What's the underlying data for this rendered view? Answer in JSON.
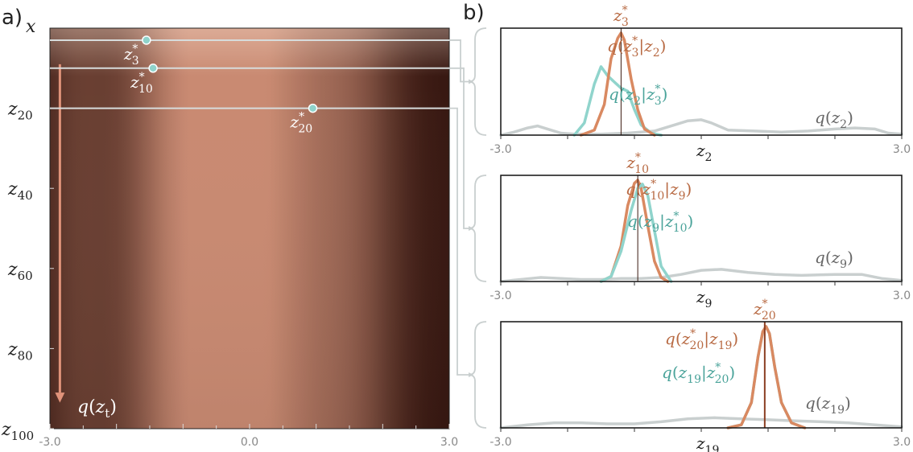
{
  "panels": {
    "a": {
      "letter": "a)",
      "y_axis_var": "x",
      "y_axis_labels": [
        {
          "var": "z",
          "sub": "20",
          "value": 20
        },
        {
          "var": "z",
          "sub": "40",
          "value": 40
        },
        {
          "var": "z",
          "sub": "60",
          "value": 60
        },
        {
          "var": "z",
          "sub": "80",
          "value": 80
        },
        {
          "var": "z",
          "sub": "100",
          "value": 100
        }
      ],
      "x_ticks": [
        "-3.0",
        "0.0",
        "3.0"
      ],
      "arrow_label": {
        "func": "q",
        "var": "z",
        "sub": "t"
      },
      "markers": [
        {
          "name": "marker-z3",
          "var": "z",
          "sub": "3",
          "sup": "*",
          "x": -1.55,
          "t": 3
        },
        {
          "name": "marker-z10",
          "var": "z",
          "sub": "10",
          "sup": "*",
          "x": -1.45,
          "t": 10
        },
        {
          "name": "marker-z20",
          "var": "z",
          "sub": "20",
          "sup": "*",
          "x": 0.95,
          "t": 20
        }
      ]
    },
    "b": {
      "letter": "b)",
      "x_ticks": [
        "-3.0",
        "3.0"
      ]
    }
  },
  "chart_data": [
    {
      "type": "heatmap",
      "panel": "a",
      "xlim": [
        -3.0,
        3.0
      ],
      "ylim": [
        0,
        100
      ],
      "x_tick_values": [
        -3.0,
        0.0,
        3.0
      ],
      "y_tick_values": [
        20,
        40,
        60,
        80,
        100
      ],
      "colormap": [
        "#2a0d08",
        "#c98a72"
      ],
      "density_modes": [
        {
          "center": -1.2,
          "width": 0.6,
          "weight": 0.55
        },
        {
          "center": 0.1,
          "width": 0.9,
          "weight": 1.0
        },
        {
          "center": 1.6,
          "width": 0.5,
          "weight": 0.35
        },
        {
          "center": -2.6,
          "width": 0.4,
          "weight": 0.3
        }
      ]
    },
    {
      "type": "line",
      "panel": "b-top",
      "title_var": {
        "var": "z",
        "sub": "3",
        "sup": "*"
      },
      "xlabel": {
        "var": "z",
        "sub": "2"
      },
      "xlim": [
        -3.0,
        3.0
      ],
      "star_x": -1.2,
      "series": [
        {
          "name": "q(z3*|z2)",
          "label_parts": {
            "func": "q",
            "cond_left": {
              "var": "z",
              "sub": "3",
              "sup": "*"
            },
            "cond_right": {
              "var": "z",
              "sub": "2"
            }
          },
          "color": "#d98961",
          "x": [
            -1.8,
            -1.6,
            -1.45,
            -1.35,
            -1.25,
            -1.2,
            -1.15,
            -1.05,
            -0.95,
            -0.85,
            -0.7
          ],
          "y": [
            0.0,
            0.05,
            0.3,
            0.75,
            0.95,
            1.0,
            0.93,
            0.55,
            0.25,
            0.06,
            0.0
          ]
        },
        {
          "name": "q(z2|z3*)",
          "label_parts": {
            "func": "q",
            "cond_left": {
              "var": "z",
              "sub": "2"
            },
            "cond_right": {
              "var": "z",
              "sub": "3",
              "sup": "*"
            }
          },
          "color": "#90d4cc",
          "x": [
            -1.9,
            -1.75,
            -1.6,
            -1.5,
            -1.4,
            -1.3,
            -1.2,
            -1.1,
            -1.0,
            -0.9,
            -0.75,
            -0.6
          ],
          "y": [
            0.0,
            0.12,
            0.5,
            0.67,
            0.58,
            0.52,
            0.46,
            0.43,
            0.25,
            0.1,
            0.02,
            0.0
          ]
        },
        {
          "name": "q(z2)",
          "label_parts": {
            "func": "q",
            "var": "z",
            "sub": "2"
          },
          "color": "#c9cfcf",
          "x": [
            -3.0,
            -2.8,
            -2.6,
            -2.45,
            -2.3,
            -2.1,
            -1.9,
            -1.5,
            -1.1,
            -0.7,
            -0.4,
            -0.2,
            0.0,
            0.15,
            0.4,
            0.8,
            1.2,
            1.6,
            2.0,
            2.3,
            2.6,
            2.8,
            3.0
          ],
          "y": [
            0.0,
            0.03,
            0.07,
            0.09,
            0.06,
            0.02,
            0.01,
            0.01,
            0.02,
            0.04,
            0.1,
            0.14,
            0.15,
            0.12,
            0.05,
            0.04,
            0.03,
            0.04,
            0.06,
            0.07,
            0.06,
            0.02,
            0.01
          ]
        }
      ]
    },
    {
      "type": "line",
      "panel": "b-middle",
      "title_var": {
        "var": "z",
        "sub": "10",
        "sup": "*"
      },
      "xlabel": {
        "var": "z",
        "sub": "9"
      },
      "xlim": [
        -3.0,
        3.0
      ],
      "star_x": -0.95,
      "series": [
        {
          "name": "q(z10*|z9)",
          "label_parts": {
            "func": "q",
            "cond_left": {
              "var": "z",
              "sub": "10",
              "sup": "*"
            },
            "cond_right": {
              "var": "z",
              "sub": "9"
            }
          },
          "color": "#d98961",
          "x": [
            -1.5,
            -1.35,
            -1.2,
            -1.1,
            -1.0,
            -0.95,
            -0.9,
            -0.8,
            -0.7,
            -0.6,
            -0.5
          ],
          "y": [
            0.0,
            0.05,
            0.35,
            0.75,
            0.97,
            1.0,
            0.92,
            0.55,
            0.2,
            0.04,
            0.0
          ]
        },
        {
          "name": "q(z9|z10*)",
          "label_parts": {
            "func": "q",
            "cond_left": {
              "var": "z",
              "sub": "9"
            },
            "cond_right": {
              "var": "z",
              "sub": "10",
              "sup": "*"
            }
          },
          "color": "#90d4cc",
          "x": [
            -1.5,
            -1.35,
            -1.2,
            -1.05,
            -0.95,
            -0.88,
            -0.8,
            -0.7,
            -0.6,
            -0.45
          ],
          "y": [
            0.0,
            0.05,
            0.3,
            0.7,
            0.92,
            0.96,
            0.85,
            0.5,
            0.15,
            0.0
          ]
        },
        {
          "name": "q(z9)",
          "label_parts": {
            "func": "q",
            "var": "z",
            "sub": "9"
          },
          "color": "#c9cfcf",
          "x": [
            -3.0,
            -2.7,
            -2.4,
            -2.1,
            -1.8,
            -1.5,
            -1.2,
            -0.9,
            -0.6,
            -0.3,
            0.0,
            0.3,
            0.7,
            1.1,
            1.5,
            2.0,
            2.4,
            2.7,
            3.0
          ],
          "y": [
            0.0,
            0.02,
            0.04,
            0.03,
            0.02,
            0.02,
            0.03,
            0.03,
            0.04,
            0.07,
            0.11,
            0.12,
            0.09,
            0.07,
            0.06,
            0.07,
            0.07,
            0.03,
            0.01
          ]
        }
      ]
    },
    {
      "type": "line",
      "panel": "b-bottom",
      "title_var": {
        "var": "z",
        "sub": "20",
        "sup": "*"
      },
      "xlabel": {
        "var": "z",
        "sub": "19"
      },
      "xlim": [
        -3.0,
        3.0
      ],
      "star_x": 0.95,
      "series": [
        {
          "name": "q(z20*|z19)",
          "label_parts": {
            "func": "q",
            "cond_left": {
              "var": "z",
              "sub": "20",
              "sup": "*"
            },
            "cond_right": {
              "var": "z",
              "sub": "19"
            }
          },
          "color": "#d98961",
          "x": [
            0.4,
            0.6,
            0.75,
            0.85,
            0.92,
            0.97,
            1.02,
            1.1,
            1.2,
            1.35,
            1.55
          ],
          "y": [
            0.0,
            0.03,
            0.25,
            0.7,
            0.95,
            1.0,
            0.93,
            0.6,
            0.25,
            0.05,
            0.0
          ]
        },
        {
          "name": "q(z19|z20*)",
          "label_parts": {
            "func": "q",
            "cond_left": {
              "var": "z",
              "sub": "19"
            },
            "cond_right": {
              "var": "z",
              "sub": "20",
              "sup": "*"
            }
          },
          "color": "#90d4cc",
          "x": [
            0.4,
            0.6,
            0.75,
            0.85,
            0.92,
            0.97,
            1.02,
            1.1,
            1.2,
            1.35,
            1.55
          ],
          "y": [
            0.0,
            0.03,
            0.25,
            0.7,
            0.95,
            1.0,
            0.93,
            0.6,
            0.25,
            0.05,
            0.0
          ]
        },
        {
          "name": "q(z19)",
          "label_parts": {
            "func": "q",
            "var": "z",
            "sub": "19"
          },
          "color": "#c9cfcf",
          "x": [
            -3.0,
            -2.6,
            -2.2,
            -1.8,
            -1.4,
            -1.0,
            -0.6,
            -0.2,
            0.2,
            0.6,
            1.0,
            1.4,
            1.8,
            2.2,
            2.6,
            3.0
          ],
          "y": [
            0.0,
            0.03,
            0.05,
            0.05,
            0.04,
            0.04,
            0.06,
            0.09,
            0.1,
            0.09,
            0.08,
            0.07,
            0.06,
            0.05,
            0.03,
            0.01
          ]
        }
      ]
    }
  ]
}
